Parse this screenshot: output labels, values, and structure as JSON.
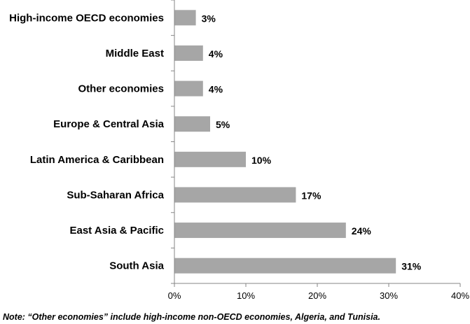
{
  "chart_data": {
    "type": "bar",
    "orientation": "horizontal",
    "categories": [
      "High-income OECD economies",
      "Middle East",
      "Other economies",
      "Europe & Central Asia",
      "Latin America & Caribbean",
      "Sub-Saharan Africa",
      "East Asia & Pacific",
      "South Asia"
    ],
    "values": [
      3,
      4,
      4,
      5,
      10,
      17,
      24,
      31
    ],
    "value_labels": [
      "3%",
      "4%",
      "4%",
      "5%",
      "10%",
      "17%",
      "24%",
      "31%"
    ],
    "xlim": [
      0,
      40
    ],
    "x_ticks": [
      "0%",
      "10%",
      "20%",
      "30%",
      "40%"
    ],
    "grid": false,
    "bar_color": "#a6a6a6",
    "title": "",
    "xlabel": "",
    "ylabel": ""
  },
  "note": "Note: “Other economies” include high-income non-OECD economies, Algeria, and Tunisia."
}
